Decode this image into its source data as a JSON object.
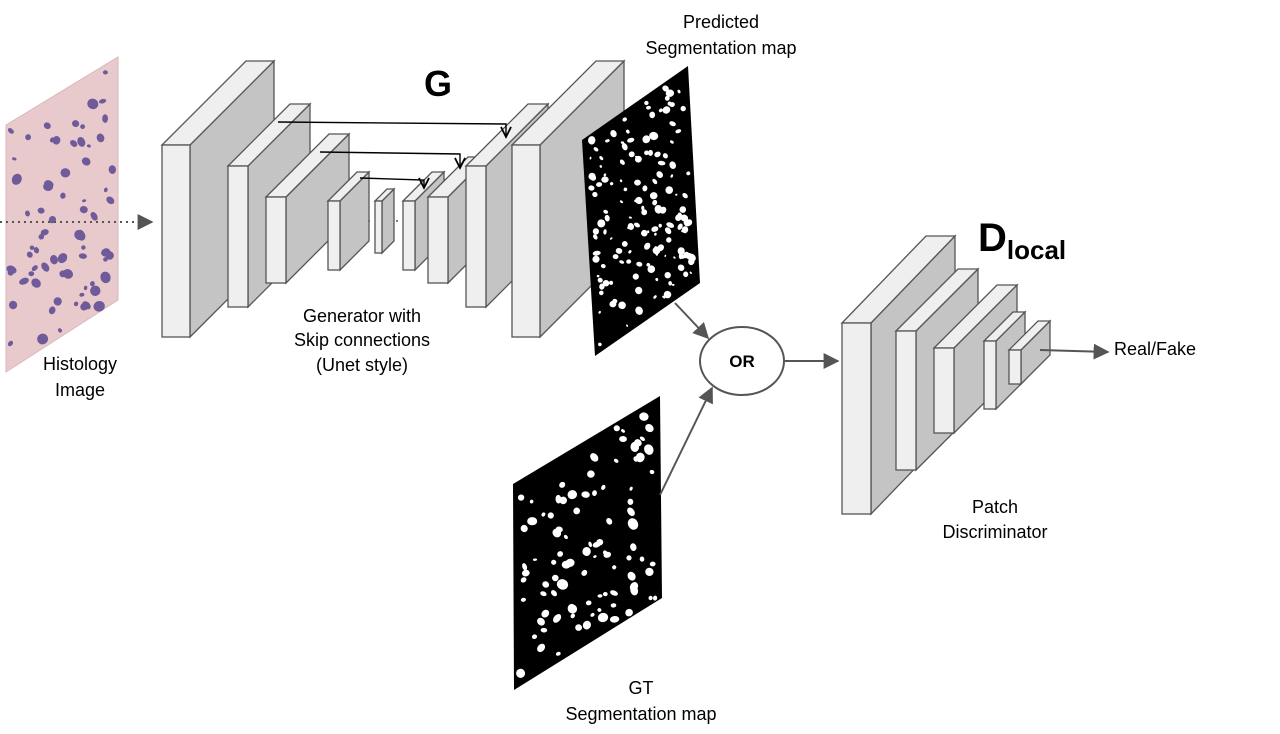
{
  "labels": {
    "histology_line1": "Histology",
    "histology_line2": "Image",
    "generator_title": "G",
    "generator_caption_line1": "Generator with",
    "generator_caption_line2": "Skip connections",
    "generator_caption_line3": "(Unet style)",
    "predicted_line1": "Predicted",
    "predicted_line2": "Segmentation map",
    "or_node": "OR",
    "gt_line1": "GT",
    "gt_line2": "Segmentation map",
    "discriminator_title_main": "D",
    "discriminator_title_sub": "local",
    "discriminator_caption_line1": "Patch",
    "discriminator_caption_line2": "Discriminator",
    "output_label": "Real/Fake"
  },
  "colors": {
    "block_front": "#efefef",
    "block_side": "#c4c4c4",
    "block_stroke": "#555555",
    "arrow": "#555555",
    "map_background": "#000000",
    "map_blobs": "#ffffff",
    "tissue_base": "#e8c9cc",
    "tissue_nuclei": "#6f5a9a"
  }
}
